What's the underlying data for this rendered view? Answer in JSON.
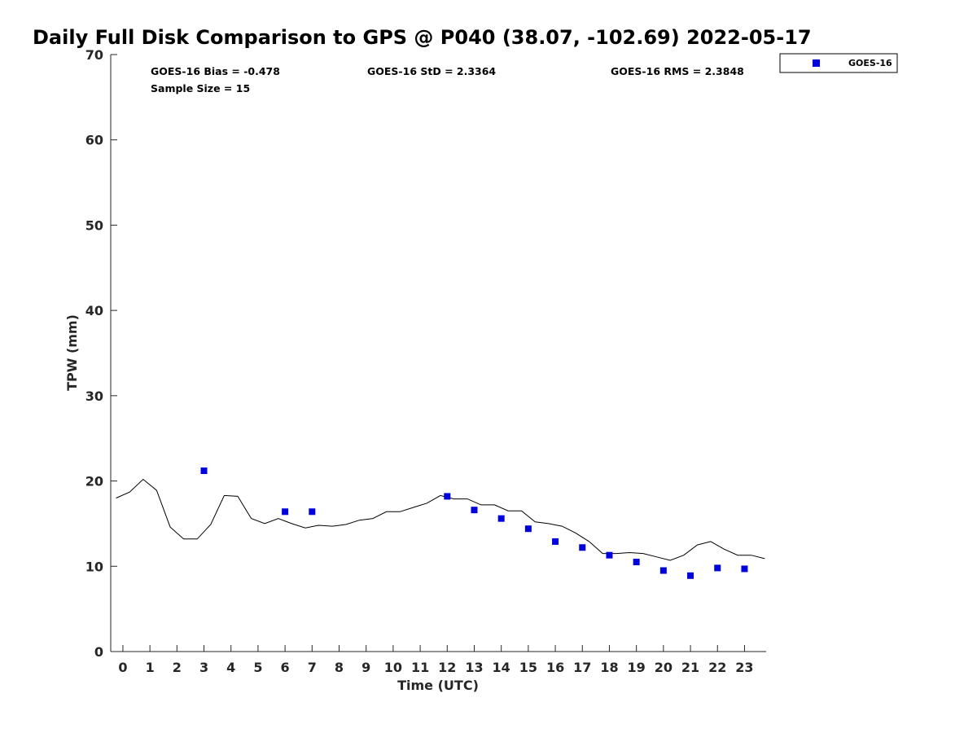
{
  "chart_data": {
    "type": "scatter",
    "title": "Daily Full Disk Comparison to GPS @ P040 (38.07, -102.69) 2022-05-17",
    "xlabel": "Time (UTC)",
    "ylabel": "TPW (mm)",
    "xlim": [
      -0.45,
      23.8
    ],
    "ylim": [
      0,
      70
    ],
    "xticks": [
      0,
      1,
      2,
      3,
      4,
      5,
      6,
      7,
      8,
      9,
      10,
      11,
      12,
      13,
      14,
      15,
      16,
      17,
      18,
      19,
      20,
      21,
      22,
      23
    ],
    "yticks": [
      0,
      10,
      20,
      30,
      40,
      50,
      60,
      70
    ],
    "stats": {
      "bias": "GOES-16 Bias = -0.478",
      "std": "GOES-16 StD = 2.3364",
      "rms": "GOES-16 RMS = 2.3848",
      "sample": "Sample Size = 15"
    },
    "legend": {
      "position": "top-right",
      "entries": [
        "GOES-16"
      ]
    },
    "series": [
      {
        "name": "GOES-16",
        "kind": "scatter",
        "color": "#0000dd",
        "marker": "square",
        "x": [
          3,
          6,
          7,
          12,
          13,
          14,
          15,
          16,
          17,
          18,
          19,
          20,
          21,
          22,
          23
        ],
        "y": [
          21.2,
          16.4,
          16.4,
          18.2,
          16.6,
          15.6,
          14.4,
          12.9,
          12.2,
          11.3,
          10.5,
          9.5,
          8.9,
          9.8,
          9.7
        ]
      },
      {
        "kind": "line",
        "color": "#000000",
        "x": [
          -0.25,
          0.25,
          0.75,
          1.25,
          1.75,
          2.25,
          2.75,
          3.25,
          3.75,
          4.25,
          4.75,
          5.25,
          5.75,
          6.25,
          6.75,
          7.25,
          7.75,
          8.25,
          8.75,
          9.25,
          9.75,
          10.25,
          10.75,
          11.25,
          11.75,
          12.25,
          12.75,
          13.25,
          13.75,
          14.25,
          14.75,
          15.25,
          15.75,
          16.25,
          16.75,
          17.25,
          17.75,
          18.25,
          18.75,
          19.25,
          19.75,
          20.25,
          20.75,
          21.25,
          21.75,
          22.25,
          22.75,
          23.25,
          23.75
        ],
        "y": [
          18.0,
          18.7,
          20.2,
          18.9,
          14.6,
          13.2,
          13.2,
          14.9,
          18.3,
          18.2,
          15.6,
          15.0,
          15.6,
          15.0,
          14.5,
          14.8,
          14.7,
          14.9,
          15.4,
          15.6,
          16.4,
          16.4,
          16.9,
          17.4,
          18.3,
          17.9,
          17.9,
          17.2,
          17.2,
          16.5,
          16.5,
          15.2,
          15.0,
          14.7,
          13.9,
          12.9,
          11.5,
          11.5,
          11.6,
          11.5,
          11.1,
          10.7,
          11.3,
          12.5,
          12.9,
          12.0,
          11.3,
          11.3,
          10.9
        ]
      }
    ]
  }
}
